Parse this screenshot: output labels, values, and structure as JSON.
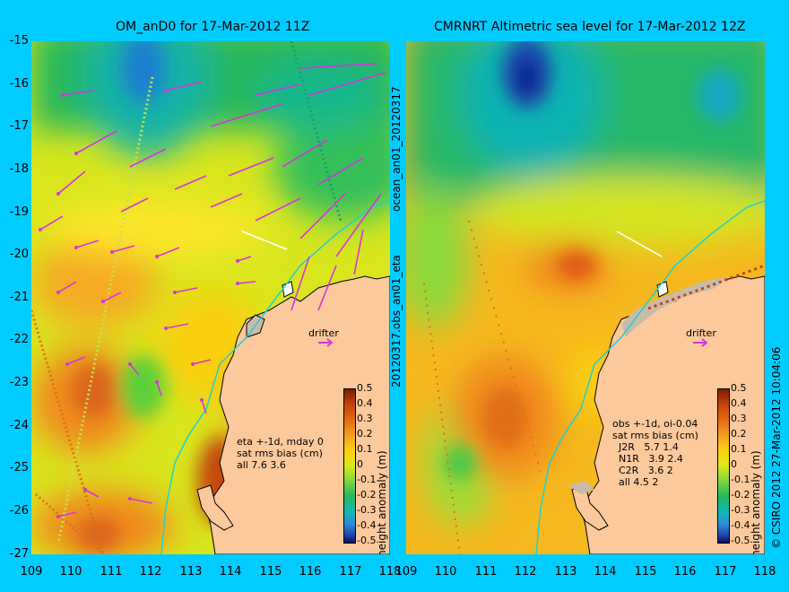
{
  "left_title": "OM_anD0 for 17-Mar-2012 11Z",
  "right_title": "CMRNRT Altimetric sea level  for 17-Mar-2012 12Z",
  "y_ticks": [
    "-15",
    "-16",
    "-17",
    "-18",
    "-19",
    "-20",
    "-21",
    "-22",
    "-23",
    "-24",
    "-25",
    "-26",
    "-27"
  ],
  "x_ticks": [
    "109",
    "110",
    "111",
    "112",
    "113",
    "114",
    "115",
    "116",
    "117",
    "118"
  ],
  "middle_label_top": "ocean_an01_20120317",
  "middle_label_bottom": "20120317.obs_an01_eta",
  "drifter_label": "drifter",
  "left_stats": "eta +-1d, mday 0\nsat rms bias (cm)\nall 7.6 3.6",
  "right_stats": "obs +-1d, oi-0.04\nsat rms bias (cm)\n  J2R   5.7 1.4\n  N1R   3.9 2.4\n  C2R   3.6 2\n  all 4.5 2",
  "colorbar_ticks": [
    "0.5",
    "0.4",
    "0.3",
    "0.2",
    "0.1",
    "0",
    "-0.1",
    "-0.2",
    "-0.3",
    "-0.4",
    "-0.5"
  ],
  "colorbar_label": "height anomaly (m)",
  "credit": "© CSIRO 2012  27-Mar-2012 10:04:06",
  "colors": {
    "background": "#00ccff",
    "land": "#fcc99c",
    "vectors": "#d633e0"
  },
  "map_extent": {
    "lon": [
      109,
      118
    ],
    "lat": [
      -27,
      -15
    ]
  }
}
